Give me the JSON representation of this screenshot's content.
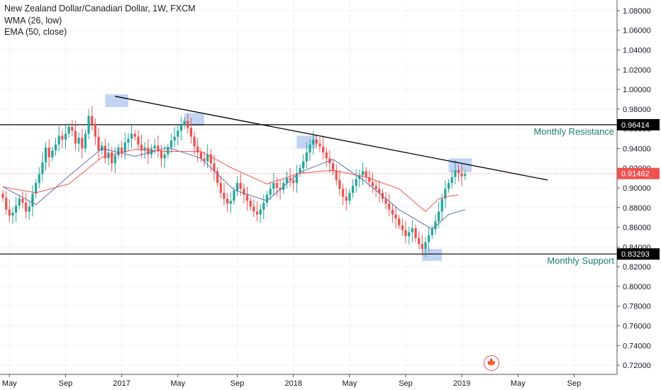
{
  "legend": {
    "title": "New Zealand Dollar/Canadian Dollar, 1W, FXCM",
    "indicator_1": "WMA (26, low)",
    "indicator_2": "EMA (50, close)"
  },
  "event_flag": {
    "icon": "canada-flag-icon",
    "glyph": "🍁"
  },
  "colors": {
    "up": "#26a69a",
    "down": "#ef5350",
    "wma": "#5b6fb0",
    "ema": "#ef5350",
    "trendline": "#000000",
    "highlight": "#aec6f0",
    "annotation": "#1a7f6e"
  },
  "chart_data": {
    "type": "candlestick",
    "ylim": [
      0.715,
      1.085
    ],
    "y_ticks": [
      0.72,
      0.74,
      0.76,
      0.78,
      0.8,
      0.82,
      0.84,
      0.86,
      0.88,
      0.9,
      0.92,
      0.94,
      0.96,
      0.98,
      1.0,
      1.02,
      1.04,
      1.06,
      1.08
    ],
    "x_ticks": [
      {
        "label": "May",
        "week": 2
      },
      {
        "label": "Sep",
        "week": 19
      },
      {
        "label": "2017",
        "week": 36
      },
      {
        "label": "May",
        "week": 53
      },
      {
        "label": "Sep",
        "week": 71
      },
      {
        "label": "2018",
        "week": 88
      },
      {
        "label": "May",
        "week": 105
      },
      {
        "label": "Sep",
        "week": 122
      },
      {
        "label": "2019",
        "week": 139
      },
      {
        "label": "May",
        "week": 156
      },
      {
        "label": "Sep",
        "week": 173
      }
    ],
    "x_range_weeks": [
      0,
      186
    ],
    "closes": [
      0.89,
      0.878,
      0.872,
      0.875,
      0.882,
      0.889,
      0.885,
      0.876,
      0.881,
      0.894,
      0.905,
      0.914,
      0.926,
      0.941,
      0.931,
      0.938,
      0.944,
      0.953,
      0.949,
      0.955,
      0.962,
      0.958,
      0.945,
      0.951,
      0.94,
      0.955,
      0.973,
      0.965,
      0.952,
      0.938,
      0.943,
      0.93,
      0.936,
      0.925,
      0.933,
      0.941,
      0.936,
      0.946,
      0.95,
      0.955,
      0.952,
      0.944,
      0.938,
      0.941,
      0.934,
      0.94,
      0.943,
      0.938,
      0.93,
      0.934,
      0.941,
      0.948,
      0.952,
      0.958,
      0.964,
      0.968,
      0.961,
      0.952,
      0.942,
      0.936,
      0.93,
      0.927,
      0.934,
      0.925,
      0.917,
      0.905,
      0.895,
      0.889,
      0.884,
      0.887,
      0.897,
      0.905,
      0.899,
      0.893,
      0.887,
      0.881,
      0.876,
      0.873,
      0.878,
      0.885,
      0.893,
      0.899,
      0.905,
      0.9,
      0.898,
      0.905,
      0.91,
      0.908,
      0.905,
      0.915,
      0.92,
      0.927,
      0.936,
      0.944,
      0.949,
      0.945,
      0.942,
      0.936,
      0.93,
      0.925,
      0.917,
      0.908,
      0.899,
      0.891,
      0.887,
      0.895,
      0.902,
      0.909,
      0.913,
      0.917,
      0.911,
      0.906,
      0.902,
      0.899,
      0.895,
      0.889,
      0.884,
      0.878,
      0.873,
      0.869,
      0.862,
      0.857,
      0.851,
      0.855,
      0.859,
      0.849,
      0.843,
      0.838,
      0.845,
      0.852,
      0.858,
      0.866,
      0.876,
      0.889,
      0.899,
      0.905,
      0.911,
      0.918,
      0.915,
      0.912,
      0.914
    ],
    "series": [
      {
        "name": "WMA (26, low)",
        "x_weeks": [
          0,
          10,
          20,
          30,
          40,
          50,
          60,
          70,
          80,
          90,
          100,
          110,
          120,
          130,
          135,
          140
        ],
        "values": [
          0.901,
          0.883,
          0.912,
          0.94,
          0.932,
          0.941,
          0.93,
          0.898,
          0.887,
          0.916,
          0.929,
          0.906,
          0.878,
          0.858,
          0.873,
          0.878
        ]
      },
      {
        "name": "EMA (50, close)",
        "x_weeks": [
          0,
          10,
          20,
          30,
          40,
          50,
          60,
          70,
          80,
          90,
          100,
          110,
          120,
          128,
          132,
          134,
          138
        ],
        "values": [
          0.901,
          0.895,
          0.904,
          0.931,
          0.939,
          0.937,
          0.937,
          0.919,
          0.904,
          0.915,
          0.918,
          0.911,
          0.899,
          0.876,
          0.889,
          0.891,
          0.893
        ]
      }
    ],
    "trendline": {
      "start_week": 34,
      "start_value": 0.993,
      "end_week": 165,
      "end_value": 0.908
    },
    "horizontal_levels": [
      {
        "value": 0.96414,
        "label": "0.96414",
        "annotation": "Monthly Resistance"
      },
      {
        "value": 0.83293,
        "label": "0.83293",
        "annotation": "Monthly Support"
      }
    ],
    "last_price": {
      "value": 0.91462,
      "label": "0.91462"
    },
    "highlights": [
      {
        "week_from": 31,
        "week_to": 38,
        "value_from": 0.982,
        "value_to": 0.995
      },
      {
        "week_from": 55,
        "week_to": 61,
        "value_from": 0.963,
        "value_to": 0.976
      },
      {
        "week_from": 89,
        "week_to": 95,
        "value_from": 0.94,
        "value_to": 0.953
      },
      {
        "week_from": 127,
        "week_to": 133,
        "value_from": 0.826,
        "value_to": 0.838
      },
      {
        "week_from": 135,
        "week_to": 142,
        "value_from": 0.916,
        "value_to": 0.93
      }
    ]
  }
}
